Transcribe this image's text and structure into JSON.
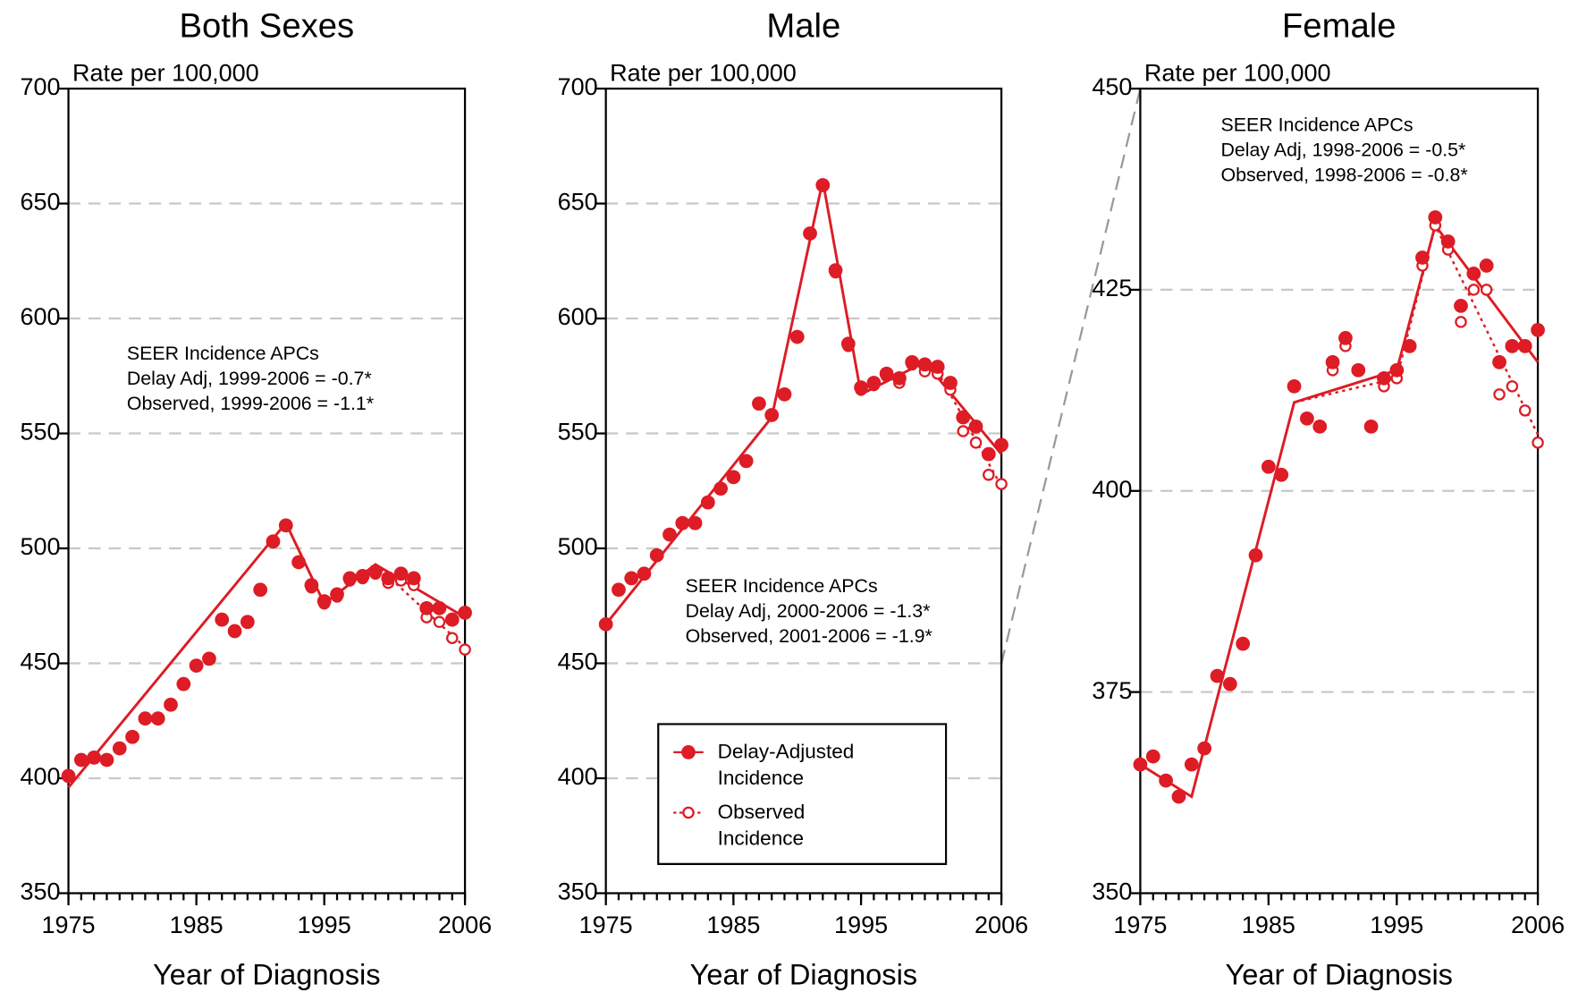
{
  "chart_data": [
    {
      "type": "line",
      "title": "Both Sexes",
      "ylabel": "Rate per 100,000",
      "xlabel": "Year of Diagnosis",
      "color": "#dd1c25",
      "x": [
        1975,
        1976,
        1977,
        1978,
        1979,
        1980,
        1981,
        1982,
        1983,
        1984,
        1985,
        1986,
        1987,
        1988,
        1989,
        1990,
        1991,
        1992,
        1993,
        1994,
        1995,
        1996,
        1997,
        1998,
        1999,
        2000,
        2001,
        2002,
        2003,
        2004,
        2005,
        2006
      ],
      "xlim": [
        1975,
        2006
      ],
      "xticks": [
        1975,
        1985,
        1995,
        2006
      ],
      "ylim": [
        350,
        700
      ],
      "yticks": [
        350,
        400,
        450,
        500,
        550,
        600,
        650,
        700
      ],
      "grid": true,
      "series": [
        {
          "marker": "open",
          "values": [
            401,
            408,
            409,
            408,
            413,
            418,
            426,
            426,
            432,
            441,
            449,
            452,
            469,
            464,
            468,
            482,
            503,
            510,
            494,
            483,
            476,
            479,
            486,
            487,
            489,
            485,
            486,
            484,
            470,
            468,
            461,
            456
          ]
        },
        {
          "marker": "filled",
          "values": [
            401,
            408,
            409,
            408,
            413,
            418,
            426,
            426,
            432,
            441,
            449,
            452,
            469,
            464,
            468,
            482,
            503,
            510,
            494,
            484,
            477,
            480,
            487,
            488,
            490,
            487,
            489,
            487,
            474,
            474,
            469,
            472
          ]
        }
      ],
      "fits": [
        {
          "style": "solid",
          "x": [
            1975,
            1992,
            1995,
            1999,
            2006
          ],
          "values": [
            396,
            511,
            476,
            493,
            470
          ]
        },
        {
          "style": "dotted",
          "x": [
            1999,
            2006
          ],
          "values": [
            493,
            457
          ]
        }
      ],
      "annotations": [
        "SEER Incidence APCs",
        "Delay Adj, 1999-2006 = -0.7*",
        "Observed, 1999-2006 = -1.1*"
      ]
    },
    {
      "type": "line",
      "title": "Male",
      "ylabel": "Rate per 100,000",
      "xlabel": "Year of Diagnosis",
      "color": "#dd1c25",
      "x": [
        1975,
        1976,
        1977,
        1978,
        1979,
        1980,
        1981,
        1982,
        1983,
        1984,
        1985,
        1986,
        1987,
        1988,
        1989,
        1990,
        1991,
        1992,
        1993,
        1994,
        1995,
        1996,
        1997,
        1998,
        1999,
        2000,
        2001,
        2002,
        2003,
        2004,
        2005,
        2006
      ],
      "xlim": [
        1975,
        2006
      ],
      "xticks": [
        1975,
        1985,
        1995,
        2006
      ],
      "ylim": [
        350,
        700
      ],
      "yticks": [
        350,
        400,
        450,
        500,
        550,
        600,
        650,
        700
      ],
      "grid": true,
      "series": [
        {
          "name": "Observed Incidence",
          "marker": "open",
          "values": [
            467,
            482,
            487,
            489,
            497,
            506,
            511,
            511,
            520,
            526,
            531,
            538,
            563,
            558,
            567,
            592,
            637,
            658,
            620,
            588,
            569,
            571,
            575,
            572,
            580,
            577,
            576,
            569,
            551,
            546,
            532,
            528
          ]
        },
        {
          "name": "Delay-Adjusted Incidence",
          "marker": "filled",
          "values": [
            467,
            482,
            487,
            489,
            497,
            506,
            511,
            511,
            520,
            526,
            531,
            538,
            563,
            558,
            567,
            592,
            637,
            658,
            621,
            589,
            570,
            572,
            576,
            574,
            581,
            580,
            579,
            572,
            557,
            553,
            541,
            545
          ]
        }
      ],
      "fits": [
        {
          "style": "solid",
          "x": [
            1975,
            1988,
            1992,
            1995,
            2000,
            2006
          ],
          "values": [
            467,
            557,
            660,
            567,
            581,
            541
          ]
        },
        {
          "style": "dotted",
          "x": [
            2001,
            2006
          ],
          "values": [
            577,
            527
          ]
        }
      ],
      "legend": "lower center",
      "annotations": [
        "SEER Incidence APCs",
        "Delay Adj, 2000-2006 = -1.3*",
        "Observed, 2001-2006 = -1.9*"
      ]
    },
    {
      "type": "line",
      "title": "Female",
      "ylabel": "Rate per 100,000",
      "xlabel": "Year of Diagnosis",
      "color": "#dd1c25",
      "x": [
        1975,
        1976,
        1977,
        1978,
        1979,
        1980,
        1981,
        1982,
        1983,
        1984,
        1985,
        1986,
        1987,
        1988,
        1989,
        1990,
        1991,
        1992,
        1993,
        1994,
        1995,
        1996,
        1997,
        1998,
        1999,
        2000,
        2001,
        2002,
        2003,
        2004,
        2005,
        2006
      ],
      "xlim": [
        1975,
        2006
      ],
      "xticks": [
        1975,
        1985,
        1995,
        2006
      ],
      "ylim": [
        350,
        450
      ],
      "yticks": [
        350,
        375,
        400,
        425,
        450
      ],
      "grid": true,
      "series": [
        {
          "marker": "open",
          "values": [
            366,
            367,
            364,
            362,
            366,
            368,
            377,
            376,
            381,
            392,
            403,
            402,
            413,
            409,
            408,
            415,
            418,
            415,
            408,
            413,
            414,
            418,
            428,
            433,
            430,
            421,
            425,
            425,
            412,
            413,
            410,
            406
          ]
        },
        {
          "marker": "filled",
          "values": [
            366,
            367,
            364,
            362,
            366,
            368,
            377,
            376,
            381,
            392,
            403,
            402,
            413,
            409,
            408,
            416,
            419,
            415,
            408,
            414,
            415,
            418,
            429,
            434,
            431,
            423,
            427,
            428,
            416,
            418,
            418,
            420
          ]
        }
      ],
      "fits": [
        {
          "style": "solid",
          "x": [
            1975,
            1979,
            1987,
            1995,
            1998,
            2006
          ],
          "values": [
            366,
            362,
            411,
            415,
            433,
            416
          ]
        },
        {
          "style": "dotted",
          "x": [
            1987,
            1995,
            1998,
            2006
          ],
          "values": [
            411,
            414,
            433,
            407
          ]
        }
      ],
      "annotations": [
        "SEER Incidence APCs",
        "Delay Adj, 1998-2006 = -0.5*",
        "Observed, 1998-2006 = -0.8*"
      ]
    }
  ]
}
